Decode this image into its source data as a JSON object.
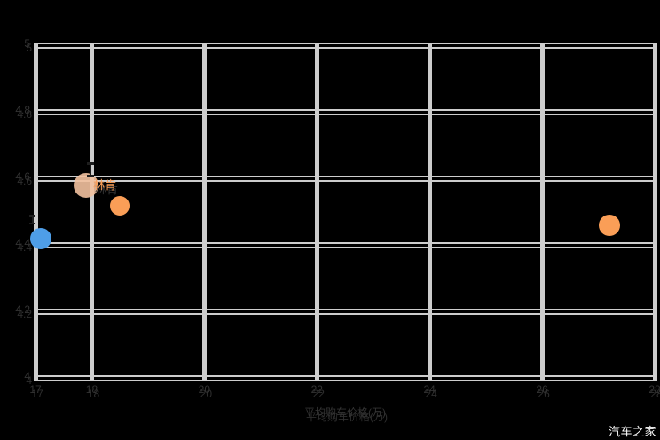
{
  "watermark": {
    "text": "汽车之家"
  },
  "chart_data": {
    "type": "scatter",
    "title": "",
    "xlabel": "平均购车价格(万)",
    "ylabel": "",
    "xlim": [
      17,
      28
    ],
    "ylim": [
      4,
      5
    ],
    "x_tick_values": [
      17,
      18,
      20,
      22,
      24,
      26,
      28
    ],
    "x_ticks": [
      "17",
      "18",
      "20",
      "22",
      "24",
      "26",
      "28"
    ],
    "y_tick_values": [
      4,
      4.2,
      4.4,
      4.6,
      4.8,
      5
    ],
    "y_ticks": [
      "4",
      "4.2",
      "4.4",
      "4.6",
      "4.8",
      "5"
    ],
    "grid": true,
    "legend_position": "none",
    "series": [
      {
        "name": "blue-bubble",
        "color": "#4e9ee8",
        "opacity": 1,
        "points": [
          {
            "x": 17.1,
            "y": 4.41,
            "r": 12,
            "label": ""
          }
        ]
      },
      {
        "name": "light-orange-bubble",
        "color": "#f2c19e",
        "opacity": 0.9,
        "points": [
          {
            "x": 17.9,
            "y": 4.57,
            "r": 14,
            "label": "林肯"
          }
        ]
      },
      {
        "name": "orange-bubbles",
        "color": "#fa9e57",
        "opacity": 1,
        "points": [
          {
            "x": 18.5,
            "y": 4.51,
            "r": 11,
            "label": ""
          },
          {
            "x": 27.2,
            "y": 4.45,
            "r": 12,
            "label": ""
          }
        ]
      }
    ]
  }
}
